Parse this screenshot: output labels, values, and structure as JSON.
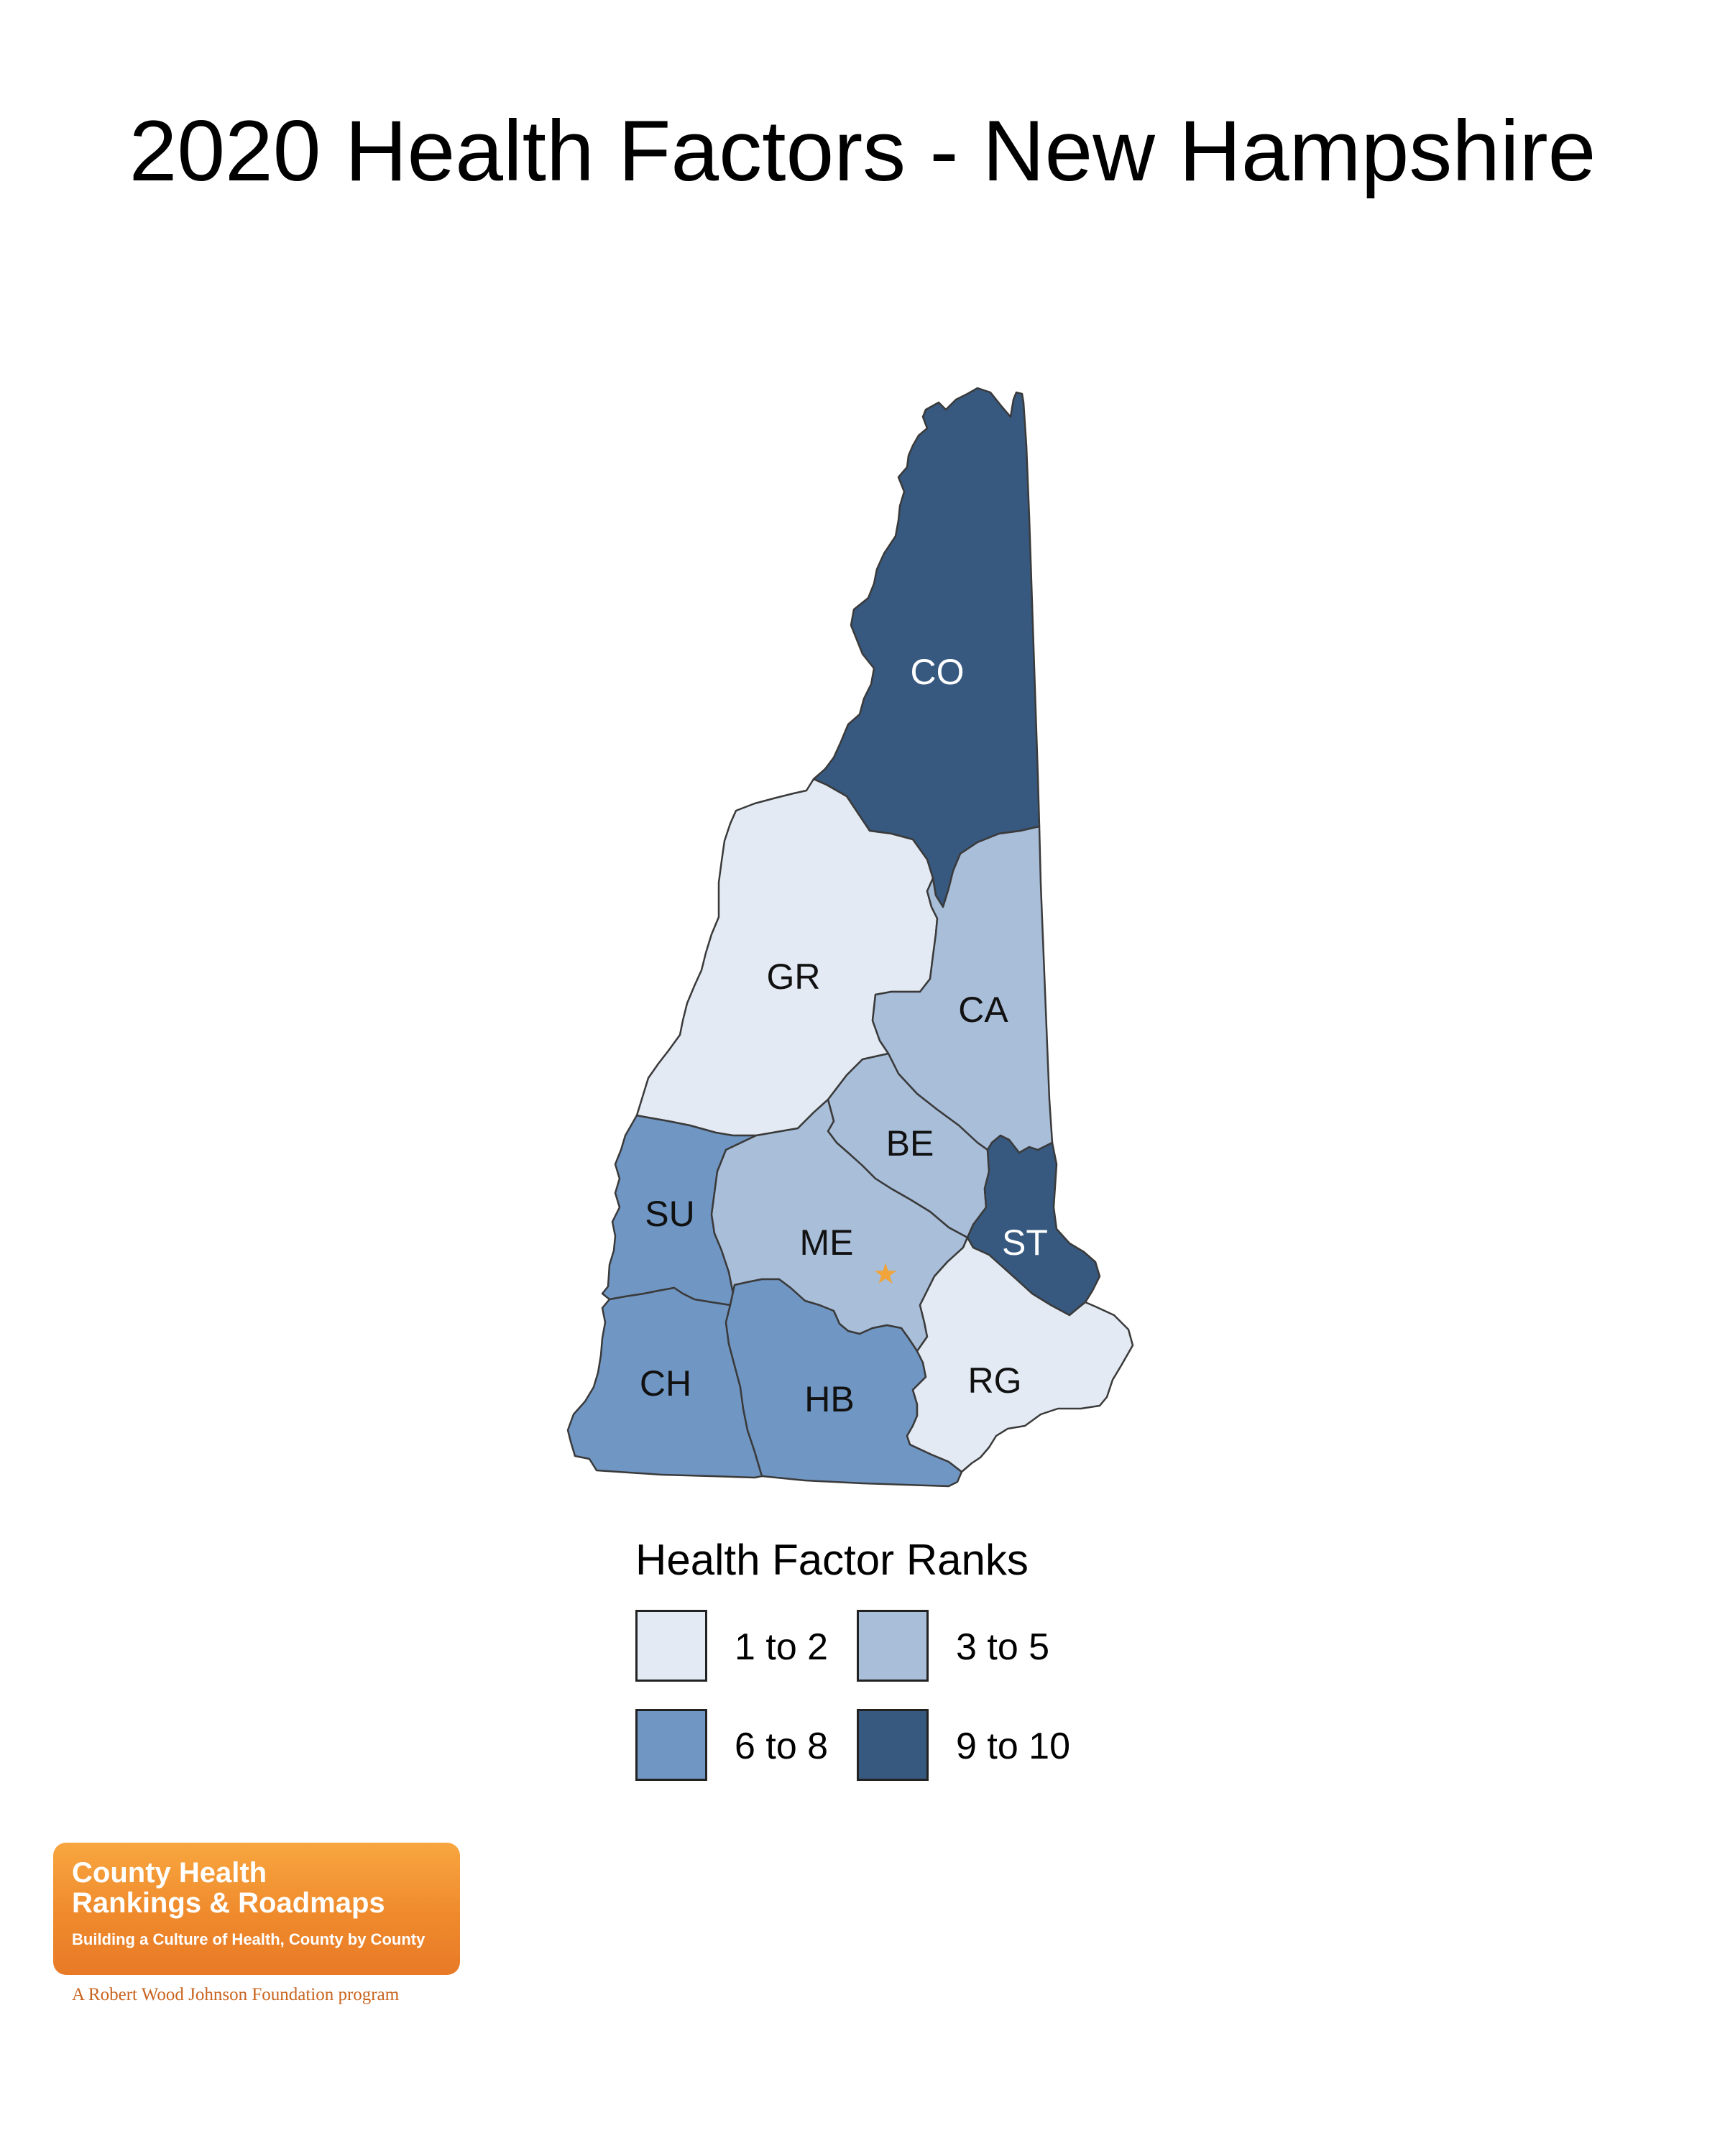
{
  "title": "2020 Health Factors - New Hampshire",
  "colors": {
    "rank_1_2": "#e3eaf3",
    "rank_3_5": "#a9bed9",
    "rank_6_8": "#7096c3",
    "rank_9_10": "#375980",
    "border": "#3a3a3a",
    "star": "#f0a43a"
  },
  "counties": [
    {
      "abbr": "CO",
      "rank_group": "9 to 10"
    },
    {
      "abbr": "GR",
      "rank_group": "1 to 2"
    },
    {
      "abbr": "CA",
      "rank_group": "3 to 5"
    },
    {
      "abbr": "BE",
      "rank_group": "3 to 5"
    },
    {
      "abbr": "SU",
      "rank_group": "6 to 8"
    },
    {
      "abbr": "ME",
      "rank_group": "3 to 5"
    },
    {
      "abbr": "ST",
      "rank_group": "9 to 10"
    },
    {
      "abbr": "CH",
      "rank_group": "6 to 8"
    },
    {
      "abbr": "HB",
      "rank_group": "6 to 8"
    },
    {
      "abbr": "RG",
      "rank_group": "1 to 2"
    }
  ],
  "capital_marker": "star-icon",
  "legend": {
    "title": "Health Factor Ranks",
    "items": [
      {
        "label": "1 to 2",
        "color": "#e3eaf3"
      },
      {
        "label": "3 to 5",
        "color": "#a9bed9"
      },
      {
        "label": "6 to 8",
        "color": "#7096c3"
      },
      {
        "label": "9 to 10",
        "color": "#375980"
      }
    ]
  },
  "logo": {
    "line1": "County Health",
    "line2": "Rankings & Roadmaps",
    "tagline": "Building a Culture of Health, County by County",
    "sponsor": "A Robert Wood Johnson Foundation program"
  }
}
